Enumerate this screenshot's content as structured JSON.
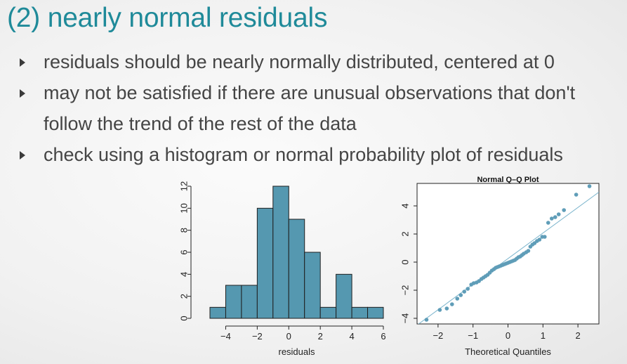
{
  "slide": {
    "title": "(2) nearly normal residuals",
    "bullets": [
      "residuals should be nearly normally distributed, centered at 0",
      "may not be satisfied if there are unusual observations that don't follow the trend of the rest of the data",
      "check using a histogram or normal probability plot of residuals"
    ],
    "bullet_icon": "triangle-right-icon"
  },
  "colors": {
    "title": "#1f8a99",
    "text": "#454545",
    "bar_fill": "#5598b0",
    "point": "#5f9db8",
    "ref_line": "#7ab4cc"
  },
  "chart_data": [
    {
      "type": "bar",
      "title": "",
      "xlabel": "residuals",
      "ylabel": "",
      "bin_edges": [
        -5,
        -4,
        -3,
        -2,
        -1,
        0,
        1,
        2,
        3,
        4,
        5,
        6
      ],
      "values": [
        1,
        3,
        3,
        10,
        12,
        9,
        6,
        1,
        4,
        1,
        1
      ],
      "xlim": [
        -5,
        6
      ],
      "ylim": [
        0,
        12
      ],
      "xticks": [
        "-4",
        "-2",
        "0",
        "2",
        "4",
        "6"
      ],
      "yticks": [
        "0",
        "2",
        "4",
        "6",
        "8",
        "10",
        "12"
      ]
    },
    {
      "type": "scatter",
      "title": "Normal Q–Q Plot",
      "xlabel": "Theoretical Quantiles",
      "ylabel": "",
      "xlim": [
        -2.6,
        2.6
      ],
      "ylim": [
        -4.4,
        5.6
      ],
      "xticks": [
        "-2",
        "-1",
        "0",
        "1",
        "2"
      ],
      "yticks": [
        "-4",
        "-2",
        "0",
        "2",
        "4"
      ],
      "reference_line": {
        "slope": 1.82,
        "intercept": 0.25
      },
      "points": [
        [
          -2.33,
          -4.1
        ],
        [
          -1.95,
          -3.4
        ],
        [
          -1.75,
          -3.3
        ],
        [
          -1.6,
          -3.0
        ],
        [
          -1.45,
          -2.6
        ],
        [
          -1.35,
          -2.35
        ],
        [
          -1.25,
          -2.1
        ],
        [
          -1.15,
          -1.9
        ],
        [
          -1.05,
          -1.6
        ],
        [
          -0.98,
          -1.5
        ],
        [
          -0.9,
          -1.45
        ],
        [
          -0.83,
          -1.35
        ],
        [
          -0.76,
          -1.2
        ],
        [
          -0.7,
          -1.1
        ],
        [
          -0.64,
          -1.0
        ],
        [
          -0.58,
          -0.9
        ],
        [
          -0.52,
          -0.75
        ],
        [
          -0.46,
          -0.6
        ],
        [
          -0.4,
          -0.5
        ],
        [
          -0.35,
          -0.4
        ],
        [
          -0.3,
          -0.35
        ],
        [
          -0.25,
          -0.3
        ],
        [
          -0.2,
          -0.25
        ],
        [
          -0.15,
          -0.2
        ],
        [
          -0.1,
          -0.15
        ],
        [
          -0.05,
          -0.1
        ],
        [
          0.0,
          -0.05
        ],
        [
          0.05,
          0.0
        ],
        [
          0.1,
          0.05
        ],
        [
          0.15,
          0.1
        ],
        [
          0.2,
          0.15
        ],
        [
          0.25,
          0.25
        ],
        [
          0.3,
          0.35
        ],
        [
          0.35,
          0.4
        ],
        [
          0.4,
          0.5
        ],
        [
          0.45,
          0.6
        ],
        [
          0.52,
          0.7
        ],
        [
          0.58,
          0.8
        ],
        [
          0.64,
          1.1
        ],
        [
          0.7,
          1.25
        ],
        [
          0.76,
          1.35
        ],
        [
          0.83,
          1.5
        ],
        [
          0.9,
          1.6
        ],
        [
          0.98,
          1.8
        ],
        [
          1.05,
          1.8
        ],
        [
          1.15,
          2.8
        ],
        [
          1.25,
          3.1
        ],
        [
          1.35,
          3.2
        ],
        [
          1.45,
          3.4
        ],
        [
          1.6,
          3.7
        ],
        [
          1.95,
          4.8
        ],
        [
          2.33,
          5.4
        ]
      ]
    }
  ]
}
